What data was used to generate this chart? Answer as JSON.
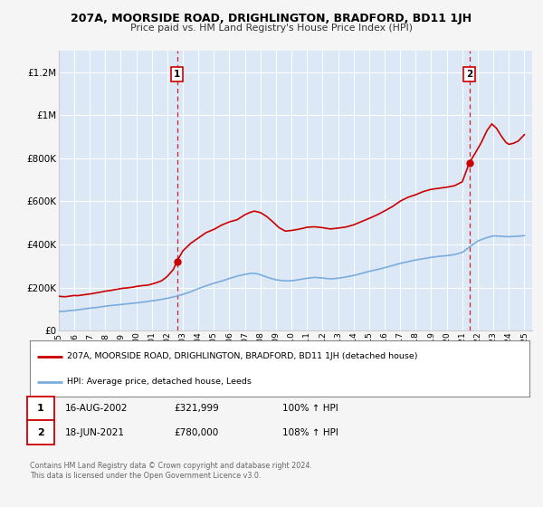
{
  "title": "207A, MOORSIDE ROAD, DRIGHLINGTON, BRADFORD, BD11 1JH",
  "subtitle": "Price paid vs. HM Land Registry's House Price Index (HPI)",
  "background_color": "#f5f5f5",
  "plot_bg_color": "#dce8f5",
  "grid_color": "#ffffff",
  "legend_line1": "207A, MOORSIDE ROAD, DRIGHLINGTON, BRADFORD, BD11 1JH (detached house)",
  "legend_line2": "HPI: Average price, detached house, Leeds",
  "red_line_color": "#cc0000",
  "blue_line_color": "#7aaddd",
  "marker1_date": "16-AUG-2002",
  "marker1_price": "£321,999",
  "marker1_hpi": "100% ↑ HPI",
  "marker2_date": "18-JUN-2021",
  "marker2_price": "£780,000",
  "marker2_hpi": "108% ↑ HPI",
  "marker1_x": 2002.62,
  "marker1_y_red": 321999,
  "marker2_x": 2021.46,
  "marker2_y_red": 780000,
  "vline1_x": 2002.62,
  "vline2_x": 2021.46,
  "ylim": [
    0,
    1300000
  ],
  "xlim": [
    1995,
    2025.5
  ],
  "yticks": [
    0,
    200000,
    400000,
    600000,
    800000,
    1000000,
    1200000
  ],
  "ytick_labels": [
    "£0",
    "£200K",
    "£400K",
    "£600K",
    "£800K",
    "£1M",
    "£1.2M"
  ],
  "xticks": [
    1995,
    1996,
    1997,
    1998,
    1999,
    2000,
    2001,
    2002,
    2003,
    2004,
    2005,
    2006,
    2007,
    2008,
    2009,
    2010,
    2011,
    2012,
    2013,
    2014,
    2015,
    2016,
    2017,
    2018,
    2019,
    2020,
    2021,
    2022,
    2023,
    2024,
    2025
  ],
  "red_x": [
    1995.0,
    1995.2,
    1995.4,
    1995.6,
    1995.8,
    1996.0,
    1996.2,
    1996.4,
    1996.6,
    1996.8,
    1997.0,
    1997.2,
    1997.4,
    1997.6,
    1997.8,
    1998.0,
    1998.2,
    1998.4,
    1998.6,
    1998.8,
    1999.0,
    1999.2,
    1999.4,
    1999.6,
    1999.8,
    2000.0,
    2000.2,
    2000.4,
    2000.6,
    2000.8,
    2001.0,
    2001.2,
    2001.4,
    2001.6,
    2001.8,
    2002.0,
    2002.2,
    2002.4,
    2002.62,
    2003.0,
    2003.5,
    2004.0,
    2004.5,
    2005.0,
    2005.5,
    2006.0,
    2006.5,
    2007.0,
    2007.3,
    2007.6,
    2008.0,
    2008.4,
    2008.8,
    2009.2,
    2009.6,
    2010.0,
    2010.4,
    2010.8,
    2011.0,
    2011.5,
    2012.0,
    2012.5,
    2013.0,
    2013.5,
    2014.0,
    2014.5,
    2015.0,
    2015.5,
    2016.0,
    2016.5,
    2017.0,
    2017.5,
    2018.0,
    2018.5,
    2019.0,
    2019.5,
    2020.0,
    2020.5,
    2021.0,
    2021.46,
    2021.8,
    2022.2,
    2022.6,
    2022.9,
    2023.2,
    2023.5,
    2023.8,
    2024.0,
    2024.3,
    2024.6,
    2025.0
  ],
  "red_y": [
    160000,
    158000,
    157000,
    159000,
    161000,
    163000,
    162000,
    164000,
    166000,
    168000,
    170000,
    172000,
    175000,
    177000,
    180000,
    183000,
    185000,
    187000,
    190000,
    192000,
    195000,
    197000,
    198000,
    200000,
    202000,
    205000,
    207000,
    209000,
    210000,
    212000,
    216000,
    220000,
    225000,
    230000,
    240000,
    252000,
    268000,
    285000,
    321999,
    370000,
    405000,
    430000,
    455000,
    470000,
    490000,
    505000,
    515000,
    538000,
    548000,
    555000,
    548000,
    530000,
    505000,
    478000,
    462000,
    465000,
    470000,
    476000,
    480000,
    482000,
    478000,
    472000,
    476000,
    481000,
    491000,
    506000,
    521000,
    537000,
    556000,
    576000,
    601000,
    619000,
    631000,
    646000,
    656000,
    661000,
    666000,
    673000,
    691000,
    780000,
    820000,
    870000,
    930000,
    960000,
    940000,
    905000,
    875000,
    865000,
    870000,
    880000,
    910000
  ],
  "blue_x": [
    1995.0,
    1995.4,
    1995.8,
    1996.2,
    1996.6,
    1997.0,
    1997.4,
    1997.8,
    1998.2,
    1998.6,
    1999.0,
    1999.4,
    1999.8,
    2000.2,
    2000.6,
    2001.0,
    2001.4,
    2001.8,
    2002.2,
    2002.6,
    2003.0,
    2003.5,
    2004.0,
    2004.5,
    2005.0,
    2005.5,
    2006.0,
    2006.5,
    2007.0,
    2007.4,
    2007.8,
    2008.2,
    2008.6,
    2009.0,
    2009.4,
    2009.8,
    2010.2,
    2010.6,
    2011.0,
    2011.5,
    2012.0,
    2012.5,
    2013.0,
    2013.5,
    2014.0,
    2014.5,
    2015.0,
    2015.5,
    2016.0,
    2016.5,
    2017.0,
    2017.5,
    2018.0,
    2018.5,
    2019.0,
    2019.5,
    2020.0,
    2020.5,
    2021.0,
    2021.5,
    2022.0,
    2022.5,
    2023.0,
    2023.5,
    2024.0,
    2024.5,
    2025.0
  ],
  "blue_y": [
    88000,
    90000,
    93000,
    96000,
    100000,
    104000,
    107000,
    111000,
    115000,
    118000,
    121000,
    124000,
    127000,
    130000,
    134000,
    138000,
    142000,
    147000,
    153000,
    160000,
    168000,
    180000,
    195000,
    208000,
    220000,
    230000,
    242000,
    253000,
    261000,
    266000,
    264000,
    254000,
    244000,
    236000,
    232000,
    231000,
    233000,
    238000,
    243000,
    247000,
    244000,
    240000,
    243000,
    249000,
    256000,
    265000,
    275000,
    283000,
    292000,
    302000,
    312000,
    320000,
    328000,
    334000,
    340000,
    345000,
    348000,
    353000,
    363000,
    390000,
    416000,
    430000,
    440000,
    438000,
    436000,
    438000,
    441000
  ],
  "footnote": "Contains HM Land Registry data © Crown copyright and database right 2024.\nThis data is licensed under the Open Government Licence v3.0."
}
